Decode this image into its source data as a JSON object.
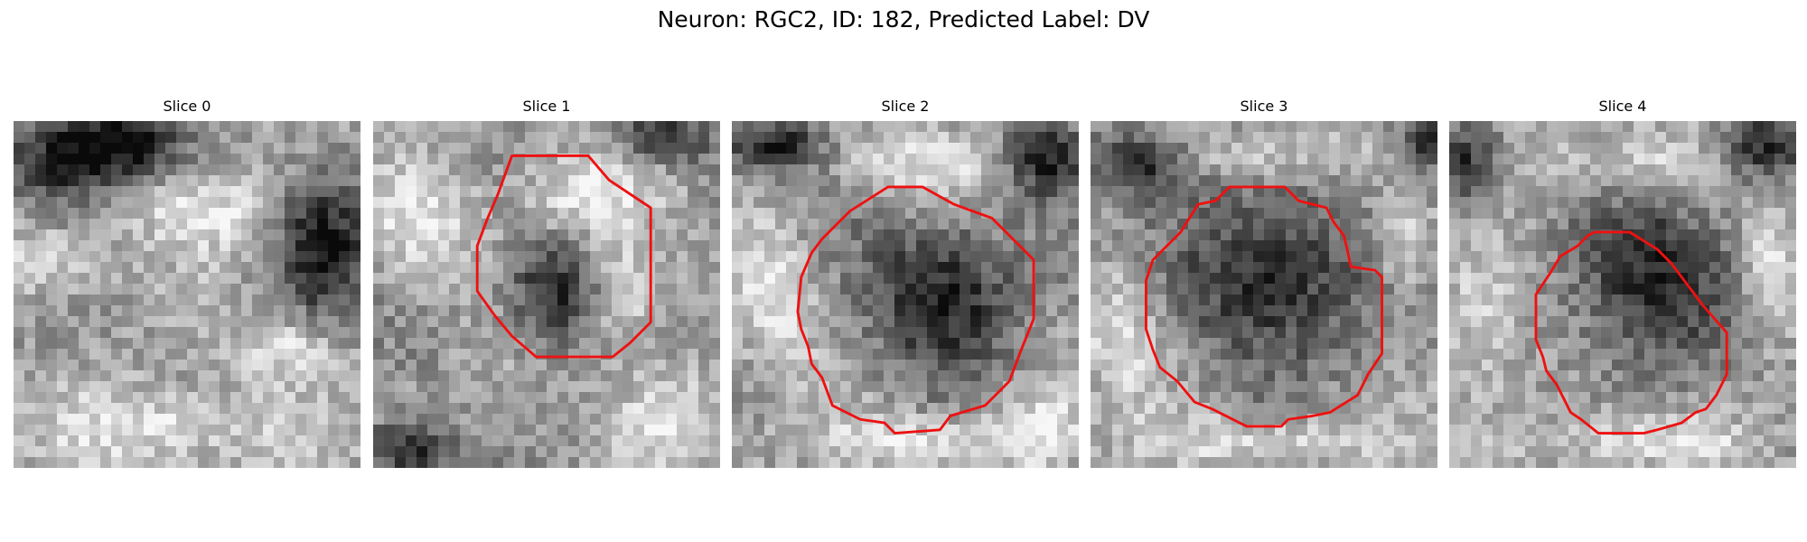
{
  "figure": {
    "title": "Neuron: RGC2, ID: 182, Predicted Label: DV",
    "slices": [
      {
        "title": "Slice 0",
        "has_outline": false,
        "dark_blobs": [
          [
            0.14,
            0.1,
            0.16,
            0.14
          ],
          [
            0.9,
            0.35,
            0.14,
            0.22
          ],
          [
            0.32,
            0.07,
            0.16,
            0.1
          ]
        ],
        "bright_blobs": [
          [
            0.55,
            0.25,
            0.2,
            0.12
          ],
          [
            0.45,
            0.88,
            0.35,
            0.12
          ],
          [
            0.1,
            0.4,
            0.18,
            0.1
          ],
          [
            0.8,
            0.65,
            0.15,
            0.1
          ]
        ],
        "outline": []
      },
      {
        "title": "Slice 1",
        "has_outline": true,
        "dark_blobs": [
          [
            0.52,
            0.5,
            0.13,
            0.15
          ],
          [
            0.83,
            0.05,
            0.14,
            0.08
          ],
          [
            0.1,
            0.95,
            0.15,
            0.08
          ]
        ],
        "bright_blobs": [
          [
            0.6,
            0.2,
            0.2,
            0.12
          ],
          [
            0.72,
            0.5,
            0.1,
            0.18
          ],
          [
            0.15,
            0.3,
            0.15,
            0.15
          ],
          [
            0.85,
            0.85,
            0.14,
            0.12
          ]
        ],
        "outline": [
          [
            0.4,
            0.1
          ],
          [
            0.62,
            0.1
          ],
          [
            0.68,
            0.17
          ],
          [
            0.8,
            0.25
          ],
          [
            0.8,
            0.58
          ],
          [
            0.74,
            0.64
          ],
          [
            0.69,
            0.68
          ],
          [
            0.65,
            0.68
          ],
          [
            0.47,
            0.68
          ],
          [
            0.4,
            0.62
          ],
          [
            0.35,
            0.56
          ],
          [
            0.3,
            0.49
          ],
          [
            0.3,
            0.36
          ],
          [
            0.33,
            0.28
          ],
          [
            0.36,
            0.21
          ]
        ]
      },
      {
        "title": "Slice 2",
        "has_outline": true,
        "dark_blobs": [
          [
            0.6,
            0.5,
            0.22,
            0.22
          ],
          [
            0.9,
            0.1,
            0.12,
            0.12
          ],
          [
            0.12,
            0.07,
            0.15,
            0.08
          ]
        ],
        "bright_blobs": [
          [
            0.55,
            0.12,
            0.25,
            0.1
          ],
          [
            0.12,
            0.5,
            0.12,
            0.2
          ],
          [
            0.5,
            0.92,
            0.3,
            0.08
          ],
          [
            0.88,
            0.9,
            0.12,
            0.12
          ]
        ],
        "outline": [
          [
            0.45,
            0.19
          ],
          [
            0.55,
            0.19
          ],
          [
            0.64,
            0.24
          ],
          [
            0.75,
            0.28
          ],
          [
            0.79,
            0.32
          ],
          [
            0.87,
            0.4
          ],
          [
            0.87,
            0.57
          ],
          [
            0.83,
            0.67
          ],
          [
            0.8,
            0.75
          ],
          [
            0.73,
            0.82
          ],
          [
            0.63,
            0.85
          ],
          [
            0.6,
            0.89
          ],
          [
            0.47,
            0.9
          ],
          [
            0.44,
            0.87
          ],
          [
            0.37,
            0.86
          ],
          [
            0.29,
            0.82
          ],
          [
            0.26,
            0.74
          ],
          [
            0.23,
            0.7
          ],
          [
            0.22,
            0.65
          ],
          [
            0.2,
            0.6
          ],
          [
            0.19,
            0.55
          ],
          [
            0.2,
            0.45
          ],
          [
            0.23,
            0.38
          ],
          [
            0.26,
            0.34
          ],
          [
            0.34,
            0.26
          ]
        ]
      },
      {
        "title": "Slice 3",
        "has_outline": true,
        "dark_blobs": [
          [
            0.52,
            0.45,
            0.26,
            0.26
          ],
          [
            0.97,
            0.05,
            0.1,
            0.1
          ],
          [
            0.15,
            0.12,
            0.16,
            0.1
          ]
        ],
        "bright_blobs": [
          [
            0.5,
            0.1,
            0.3,
            0.08
          ],
          [
            0.1,
            0.6,
            0.12,
            0.2
          ],
          [
            0.5,
            0.92,
            0.3,
            0.08
          ],
          [
            0.9,
            0.35,
            0.08,
            0.15
          ]
        ],
        "outline": [
          [
            0.4,
            0.19
          ],
          [
            0.56,
            0.19
          ],
          [
            0.6,
            0.23
          ],
          [
            0.68,
            0.25
          ],
          [
            0.7,
            0.29
          ],
          [
            0.73,
            0.33
          ],
          [
            0.74,
            0.37
          ],
          [
            0.75,
            0.42
          ],
          [
            0.82,
            0.43
          ],
          [
            0.84,
            0.45
          ],
          [
            0.84,
            0.67
          ],
          [
            0.8,
            0.73
          ],
          [
            0.77,
            0.79
          ],
          [
            0.69,
            0.84
          ],
          [
            0.64,
            0.85
          ],
          [
            0.57,
            0.86
          ],
          [
            0.55,
            0.88
          ],
          [
            0.45,
            0.88
          ],
          [
            0.35,
            0.83
          ],
          [
            0.3,
            0.81
          ],
          [
            0.25,
            0.75
          ],
          [
            0.2,
            0.71
          ],
          [
            0.18,
            0.66
          ],
          [
            0.16,
            0.6
          ],
          [
            0.16,
            0.46
          ],
          [
            0.18,
            0.4
          ],
          [
            0.26,
            0.32
          ],
          [
            0.31,
            0.24
          ],
          [
            0.36,
            0.23
          ]
        ]
      },
      {
        "title": "Slice 4",
        "has_outline": true,
        "dark_blobs": [
          [
            0.57,
            0.45,
            0.22,
            0.24
          ],
          [
            0.9,
            0.07,
            0.12,
            0.12
          ],
          [
            0.05,
            0.12,
            0.1,
            0.12
          ]
        ],
        "bright_blobs": [
          [
            0.5,
            0.12,
            0.25,
            0.1
          ],
          [
            0.1,
            0.55,
            0.12,
            0.2
          ],
          [
            0.55,
            0.92,
            0.3,
            0.08
          ],
          [
            0.92,
            0.4,
            0.08,
            0.2
          ]
        ],
        "outline": [
          [
            0.42,
            0.32
          ],
          [
            0.52,
            0.32
          ],
          [
            0.6,
            0.37
          ],
          [
            0.64,
            0.41
          ],
          [
            0.7,
            0.49
          ],
          [
            0.73,
            0.53
          ],
          [
            0.8,
            0.61
          ],
          [
            0.8,
            0.73
          ],
          [
            0.77,
            0.79
          ],
          [
            0.74,
            0.83
          ],
          [
            0.71,
            0.84
          ],
          [
            0.67,
            0.87
          ],
          [
            0.6,
            0.89
          ],
          [
            0.56,
            0.9
          ],
          [
            0.43,
            0.9
          ],
          [
            0.38,
            0.86
          ],
          [
            0.35,
            0.84
          ],
          [
            0.33,
            0.8
          ],
          [
            0.31,
            0.76
          ],
          [
            0.28,
            0.72
          ],
          [
            0.27,
            0.68
          ],
          [
            0.25,
            0.63
          ],
          [
            0.25,
            0.5
          ],
          [
            0.29,
            0.44
          ],
          [
            0.32,
            0.39
          ],
          [
            0.37,
            0.36
          ],
          [
            0.4,
            0.33
          ]
        ]
      }
    ]
  },
  "colors": {
    "outline": "#ee1111",
    "background": "#ffffff"
  }
}
